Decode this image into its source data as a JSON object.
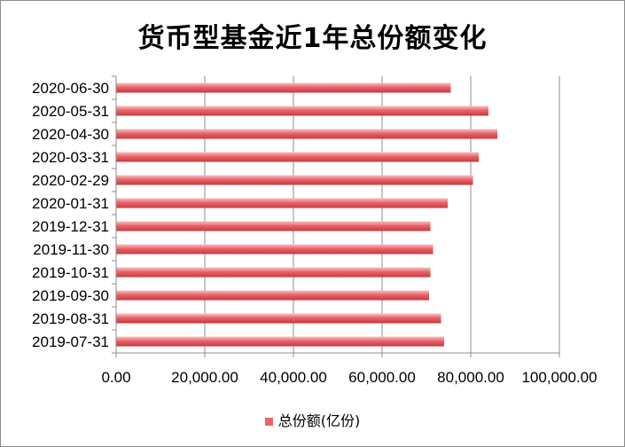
{
  "chart_data": {
    "type": "bar",
    "orientation": "horizontal",
    "title": "货币型基金近1年总份额变化",
    "categories": [
      "2020-06-30",
      "2020-05-31",
      "2020-04-30",
      "2020-03-31",
      "2020-02-29",
      "2020-01-31",
      "2019-12-31",
      "2019-11-30",
      "2019-10-31",
      "2019-09-30",
      "2019-08-31",
      "2019-07-31"
    ],
    "series": [
      {
        "name": "总份额(亿份)",
        "values": [
          75500,
          84000,
          86000,
          81800,
          80500,
          74800,
          70900,
          71500,
          70900,
          70600,
          73300,
          74000
        ]
      }
    ],
    "xlim": [
      0,
      100000
    ],
    "x_ticks": [
      "0.00",
      "20,000.00",
      "40,000.00",
      "60,000.00",
      "80,000.00",
      "100,000.00"
    ],
    "x_tick_values": [
      0,
      20000,
      40000,
      60000,
      80000,
      100000
    ],
    "grid": true,
    "legend_position": "bottom",
    "bar_color": "#e8646a"
  }
}
